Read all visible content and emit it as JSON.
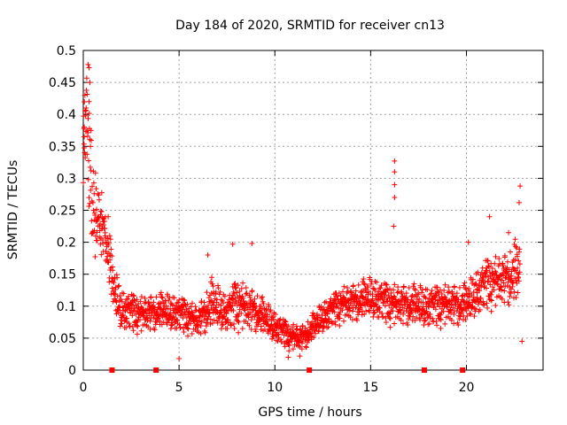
{
  "chart_data": {
    "type": "scatter",
    "title": "Day 184 of 2020, SRMTID for receiver cn13",
    "xlabel": "GPS time / hours",
    "ylabel": "SRMTID / TECUs",
    "xlim": [
      0,
      24
    ],
    "ylim": [
      0,
      0.5
    ],
    "grid": true,
    "marker": "plus",
    "color": "#ff0000",
    "x_ticks": [
      {
        "value": 0,
        "label": "0"
      },
      {
        "value": 5,
        "label": "5"
      },
      {
        "value": 10,
        "label": "10"
      },
      {
        "value": 15,
        "label": "15"
      },
      {
        "value": 20,
        "label": "20"
      }
    ],
    "y_ticks": [
      {
        "value": 0,
        "label": "0"
      },
      {
        "value": 0.05,
        "label": "0.05"
      },
      {
        "value": 0.1,
        "label": "0.1"
      },
      {
        "value": 0.15,
        "label": "0.15"
      },
      {
        "value": 0.2,
        "label": "0.2"
      },
      {
        "value": 0.25,
        "label": "0.25"
      },
      {
        "value": 0.3,
        "label": "0.3"
      },
      {
        "value": 0.35,
        "label": "0.35"
      },
      {
        "value": 0.4,
        "label": "0.4"
      },
      {
        "value": 0.45,
        "label": "0.45"
      },
      {
        "value": 0.5,
        "label": "0.5"
      }
    ],
    "baseline_markers_x": [
      1.5,
      3.8,
      11.8,
      17.8,
      19.8
    ],
    "envelope": [
      {
        "x": 0.0,
        "y": 0.33,
        "spread": 0.09
      },
      {
        "x": 0.15,
        "y": 0.38,
        "spread": 0.1
      },
      {
        "x": 0.3,
        "y": 0.35,
        "spread": 0.12
      },
      {
        "x": 0.5,
        "y": 0.26,
        "spread": 0.09
      },
      {
        "x": 0.7,
        "y": 0.24,
        "spread": 0.08
      },
      {
        "x": 1.0,
        "y": 0.22,
        "spread": 0.07
      },
      {
        "x": 1.3,
        "y": 0.18,
        "spread": 0.06
      },
      {
        "x": 1.6,
        "y": 0.12,
        "spread": 0.05
      },
      {
        "x": 2.0,
        "y": 0.09,
        "spread": 0.04
      },
      {
        "x": 3.0,
        "y": 0.085,
        "spread": 0.035
      },
      {
        "x": 4.0,
        "y": 0.09,
        "spread": 0.035
      },
      {
        "x": 5.0,
        "y": 0.085,
        "spread": 0.035
      },
      {
        "x": 6.0,
        "y": 0.075,
        "spread": 0.03
      },
      {
        "x": 6.7,
        "y": 0.1,
        "spread": 0.05
      },
      {
        "x": 7.5,
        "y": 0.085,
        "spread": 0.035
      },
      {
        "x": 8.0,
        "y": 0.1,
        "spread": 0.05
      },
      {
        "x": 9.0,
        "y": 0.09,
        "spread": 0.04
      },
      {
        "x": 10.0,
        "y": 0.065,
        "spread": 0.03
      },
      {
        "x": 10.8,
        "y": 0.05,
        "spread": 0.025
      },
      {
        "x": 11.5,
        "y": 0.05,
        "spread": 0.025
      },
      {
        "x": 12.5,
        "y": 0.08,
        "spread": 0.03
      },
      {
        "x": 13.5,
        "y": 0.1,
        "spread": 0.035
      },
      {
        "x": 15.0,
        "y": 0.11,
        "spread": 0.04
      },
      {
        "x": 16.0,
        "y": 0.1,
        "spread": 0.04
      },
      {
        "x": 17.0,
        "y": 0.1,
        "spread": 0.04
      },
      {
        "x": 18.0,
        "y": 0.095,
        "spread": 0.04
      },
      {
        "x": 19.0,
        "y": 0.1,
        "spread": 0.04
      },
      {
        "x": 20.0,
        "y": 0.1,
        "spread": 0.04
      },
      {
        "x": 21.0,
        "y": 0.13,
        "spread": 0.05
      },
      {
        "x": 22.0,
        "y": 0.14,
        "spread": 0.05
      },
      {
        "x": 22.8,
        "y": 0.15,
        "spread": 0.07
      }
    ],
    "notable_points": [
      {
        "x": 0.25,
        "y": 0.478
      },
      {
        "x": 0.3,
        "y": 0.473
      },
      {
        "x": 0.35,
        "y": 0.45
      },
      {
        "x": 0.3,
        "y": 0.42
      },
      {
        "x": 0.1,
        "y": 0.405
      },
      {
        "x": 0.05,
        "y": 0.38
      },
      {
        "x": 0.05,
        "y": 0.365
      },
      {
        "x": 1.3,
        "y": 0.24
      },
      {
        "x": 6.5,
        "y": 0.18
      },
      {
        "x": 7.8,
        "y": 0.197
      },
      {
        "x": 8.8,
        "y": 0.198
      },
      {
        "x": 16.25,
        "y": 0.327
      },
      {
        "x": 16.25,
        "y": 0.31
      },
      {
        "x": 16.25,
        "y": 0.29
      },
      {
        "x": 16.25,
        "y": 0.27
      },
      {
        "x": 16.2,
        "y": 0.225
      },
      {
        "x": 20.1,
        "y": 0.2
      },
      {
        "x": 21.2,
        "y": 0.24
      },
      {
        "x": 22.2,
        "y": 0.215
      },
      {
        "x": 22.8,
        "y": 0.288
      },
      {
        "x": 22.75,
        "y": 0.262
      },
      {
        "x": 22.9,
        "y": 0.045
      },
      {
        "x": 5.0,
        "y": 0.018
      },
      {
        "x": 10.7,
        "y": 0.02
      },
      {
        "x": 11.3,
        "y": 0.022
      }
    ]
  }
}
